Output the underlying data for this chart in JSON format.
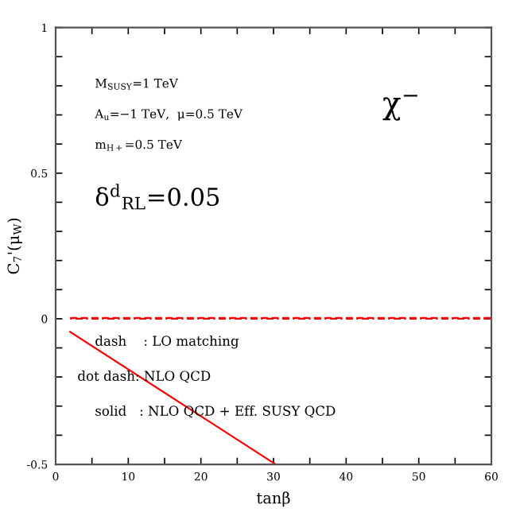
{
  "chart_data": {
    "type": "line",
    "xlabel": "tanβ",
    "ylabel": "C$_{7}$'(μ$_{W}$)",
    "xlim": [
      0,
      60
    ],
    "ylim": [
      -0.5,
      1
    ],
    "xticks": [
      0,
      {
        "value": 5,
        "label": null
      },
      10,
      {
        "value": 15,
        "label": null
      },
      20,
      {
        "value": 25,
        "label": null
      },
      30,
      {
        "value": 35,
        "label": null
      },
      40,
      {
        "value": 45,
        "label": null
      },
      50,
      {
        "value": 55,
        "label": null
      },
      60
    ],
    "yticks": [
      {
        "value": -0.5,
        "label": "-0.5"
      },
      {
        "value": -0.4,
        "label": null
      },
      {
        "value": -0.3,
        "label": null
      },
      {
        "value": -0.2,
        "label": null
      },
      {
        "value": -0.1,
        "label": null
      },
      0,
      {
        "value": 0.1,
        "label": null
      },
      {
        "value": 0.2,
        "label": null
      },
      {
        "value": 0.3,
        "label": null
      },
      {
        "value": 0.4,
        "label": null
      },
      0.5,
      {
        "value": 0.6,
        "label": null
      },
      {
        "value": 0.7,
        "label": null
      },
      {
        "value": 0.8,
        "label": null
      },
      {
        "value": 0.9,
        "label": null
      },
      1
    ],
    "grid": false,
    "series": [
      {
        "x": [
          2,
          60
        ],
        "values": [
          0.003,
          0.003
        ],
        "color": "#ff0000",
        "line_style": "dashed"
      },
      {
        "x": [
          2,
          60
        ],
        "values": [
          0,
          0
        ],
        "color": "#ff0000",
        "line_style": "dotted"
      },
      {
        "x": [
          2,
          30.3
        ],
        "values": [
          -0.045,
          -0.5
        ],
        "color": "#ff0000",
        "line_style": "solid"
      }
    ],
    "annotations": [
      "M$_{SUSY}$=1 TeV",
      "A$_{u}$=−1 TeV,  μ=0.5 TeV",
      "m$_{H+}$=0.5 TeV",
      "δ$^{d}$$_{RL}$=0.05",
      "χ$^{−}$",
      "dash    : LO matching",
      "dot dash: NLO QCD",
      "solid   : NLO QCD + Eff. SUSY QCD"
    ]
  }
}
